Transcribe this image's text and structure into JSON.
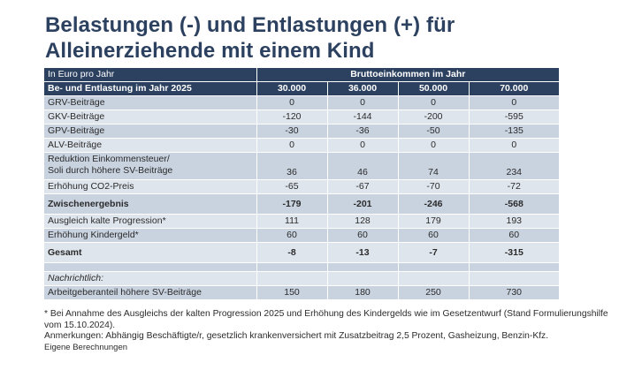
{
  "title": "Belastungen (-) und Entlastungen (+) für Alleinerziehende mit einem Kind",
  "table": {
    "unit_label": "In Euro pro Jahr",
    "group_header": "Bruttoeinkommen im Jahr",
    "row_header": "Be- und Entlastung im Jahr 2025",
    "columns": [
      "30.000",
      "36.000",
      "50.000",
      "70.000"
    ],
    "rows": [
      {
        "label": "GRV-Beiträge",
        "values": [
          "0",
          "0",
          "0",
          "0"
        ]
      },
      {
        "label": "GKV-Beiträge",
        "values": [
          "-120",
          "-144",
          "-200",
          "-595"
        ]
      },
      {
        "label": "GPV-Beiträge",
        "values": [
          "-30",
          "-36",
          "-50",
          "-135"
        ]
      },
      {
        "label": "ALV-Beiträge",
        "values": [
          "0",
          "0",
          "0",
          "0"
        ]
      },
      {
        "label_line1": "Reduktion Einkommensteuer/",
        "label_line2": "Soli durch höhere SV-Beiträge",
        "values": [
          "36",
          "46",
          "74",
          "234"
        ]
      },
      {
        "label": "Erhöhung CO2-Preis",
        "values": [
          "-65",
          "-67",
          "-70",
          "-72"
        ]
      },
      {
        "label": "Zwischenergebnis",
        "values": [
          "-179",
          "-201",
          "-246",
          "-568"
        ]
      },
      {
        "label": "Ausgleich kalte Progression*",
        "values": [
          "111",
          "128",
          "179",
          "193"
        ]
      },
      {
        "label": "Erhöhung Kindergeld*",
        "values": [
          "60",
          "60",
          "60",
          "60"
        ]
      },
      {
        "label": "Gesamt",
        "values": [
          "-8",
          "-13",
          "-7",
          "-315"
        ]
      },
      {
        "label": "Nachrichtlich:"
      },
      {
        "label": "Arbeitgeberanteil höhere SV-Beiträge",
        "values": [
          "150",
          "180",
          "250",
          "730"
        ]
      }
    ]
  },
  "notes": {
    "footnote": "* Bei Annahme des Ausgleichs der kalten Progression 2025 und Erhöhung des Kindergelds wie im Gesetzentwurf (Stand Formulierungshilfe vom 15.10.2024).",
    "remarks": "Anmerkungen: Abhängig Beschäftigte/r, gesetzlich krankenversichert mit Zusatzbeitrag 2,5 Prozent, Gasheizung, Benzin-Kfz.",
    "source": "Eigene Berechnungen"
  },
  "colors": {
    "header": "#2c4160",
    "row_dark": "#c9d3e0",
    "row_light": "#dfe5ed"
  }
}
